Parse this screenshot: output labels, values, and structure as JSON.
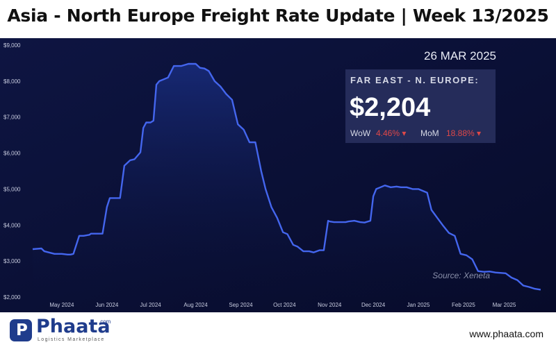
{
  "header": {
    "title": "Asia - North Europe Freight Rate Update | Week 13/2025"
  },
  "panel": {
    "date": "26 MAR 2025",
    "route": "FAR EAST - N. EUROPE:",
    "price": "$2,204",
    "wow_label": "WoW",
    "wow_value": "4.46% ▾",
    "mom_label": "MoM",
    "mom_value": "18.88% ▾"
  },
  "source": "Source: Xeneta",
  "footer": {
    "brand": "Phaata",
    "brand_com": ".com",
    "tagline": "Logistics Marketplace",
    "website": "www.phaata.com"
  },
  "colors": {
    "background": "#0a1036",
    "line": "#4466ee",
    "change_down": "#e04848"
  },
  "chart_data": {
    "type": "area",
    "title": "Asia - North Europe Freight Rate Update | Week 13/2025",
    "xlabel": "",
    "ylabel": "",
    "ylim": [
      2000,
      9000
    ],
    "yticks": [
      2000,
      3000,
      4000,
      5000,
      6000,
      7000,
      8000,
      9000
    ],
    "ytick_labels": [
      "$2,000",
      "$3,000",
      "$4,000",
      "$5,000",
      "$6,000",
      "$7,000",
      "$8,000",
      "$9,000"
    ],
    "xlim": [
      "2024-04-11",
      "2025-03-27"
    ],
    "xtick_dates": [
      "2024-05-01",
      "2024-06-01",
      "2024-07-01",
      "2024-08-01",
      "2024-09-01",
      "2024-10-01",
      "2024-11-01",
      "2024-12-01",
      "2025-01-01",
      "2025-02-01",
      "2025-03-01"
    ],
    "xtick_labels": [
      "May 2024",
      "Jun 2024",
      "Jul 2024",
      "Aug 2024",
      "Sep 2024",
      "Oct 2024",
      "Nov 2024",
      "Dec 2024",
      "Jan 2025",
      "Feb 2025",
      "Mar 2025"
    ],
    "grid": false,
    "series": [
      {
        "x": [
          "2024-04-11",
          "2024-04-17",
          "2024-04-19",
          "2024-04-26",
          "2024-05-01",
          "2024-05-05",
          "2024-05-07",
          "2024-05-09",
          "2024-05-13",
          "2024-05-16",
          "2024-05-20",
          "2024-05-21",
          "2024-05-23",
          "2024-05-26",
          "2024-05-29",
          "2024-06-01",
          "2024-06-03",
          "2024-06-06",
          "2024-06-10",
          "2024-06-13",
          "2024-06-17",
          "2024-06-20",
          "2024-06-24",
          "2024-06-26",
          "2024-06-28",
          "2024-07-01",
          "2024-07-03",
          "2024-07-05",
          "2024-07-07",
          "2024-07-10",
          "2024-07-13",
          "2024-07-17",
          "2024-07-22",
          "2024-07-27",
          "2024-08-01",
          "2024-08-04",
          "2024-08-07",
          "2024-08-10",
          "2024-08-14",
          "2024-08-18",
          "2024-08-22",
          "2024-08-26",
          "2024-08-30",
          "2024-09-03",
          "2024-09-07",
          "2024-09-11",
          "2024-09-15",
          "2024-09-18",
          "2024-09-22",
          "2024-09-26",
          "2024-09-30",
          "2024-10-03",
          "2024-10-07",
          "2024-10-10",
          "2024-10-14",
          "2024-10-18",
          "2024-10-21",
          "2024-10-25",
          "2024-10-28",
          "2024-10-31",
          "2024-11-01",
          "2024-11-04",
          "2024-11-08",
          "2024-11-12",
          "2024-11-14",
          "2024-11-18",
          "2024-11-22",
          "2024-11-25",
          "2024-11-29",
          "2024-12-01",
          "2024-12-03",
          "2024-12-06",
          "2024-12-09",
          "2024-12-13",
          "2024-12-17",
          "2024-12-20",
          "2024-12-24",
          "2024-12-28",
          "2025-01-01",
          "2025-01-04",
          "2025-01-07",
          "2025-01-10",
          "2025-01-14",
          "2025-01-18",
          "2025-01-22",
          "2025-01-26",
          "2025-01-30",
          "2025-02-03",
          "2025-02-07",
          "2025-02-11",
          "2025-02-15",
          "2025-02-19",
          "2025-02-23",
          "2025-02-27",
          "2025-03-02",
          "2025-03-06",
          "2025-03-10",
          "2025-03-14",
          "2025-03-18",
          "2025-03-22",
          "2025-03-26"
        ],
        "values": [
          3330,
          3350,
          3270,
          3200,
          3200,
          3180,
          3180,
          3200,
          3700,
          3700,
          3730,
          3760,
          3760,
          3760,
          3760,
          4500,
          4750,
          4750,
          4750,
          5650,
          5800,
          5830,
          6020,
          6700,
          6850,
          6850,
          6900,
          7900,
          8000,
          8050,
          8100,
          8420,
          8420,
          8480,
          8480,
          8370,
          8350,
          8280,
          8000,
          7850,
          7640,
          7480,
          6800,
          6650,
          6300,
          6300,
          5500,
          5000,
          4500,
          4200,
          3800,
          3750,
          3450,
          3400,
          3270,
          3270,
          3240,
          3300,
          3300,
          4120,
          4100,
          4080,
          4080,
          4080,
          4100,
          4120,
          4080,
          4070,
          4120,
          4800,
          5000,
          5050,
          5100,
          5050,
          5070,
          5050,
          5050,
          5000,
          5000,
          4950,
          4900,
          4420,
          4200,
          3980,
          3780,
          3700,
          3200,
          3160,
          3050,
          2720,
          2700,
          2710,
          2680,
          2670,
          2660,
          2540,
          2470,
          2320,
          2280,
          2230,
          2204
        ]
      }
    ]
  }
}
